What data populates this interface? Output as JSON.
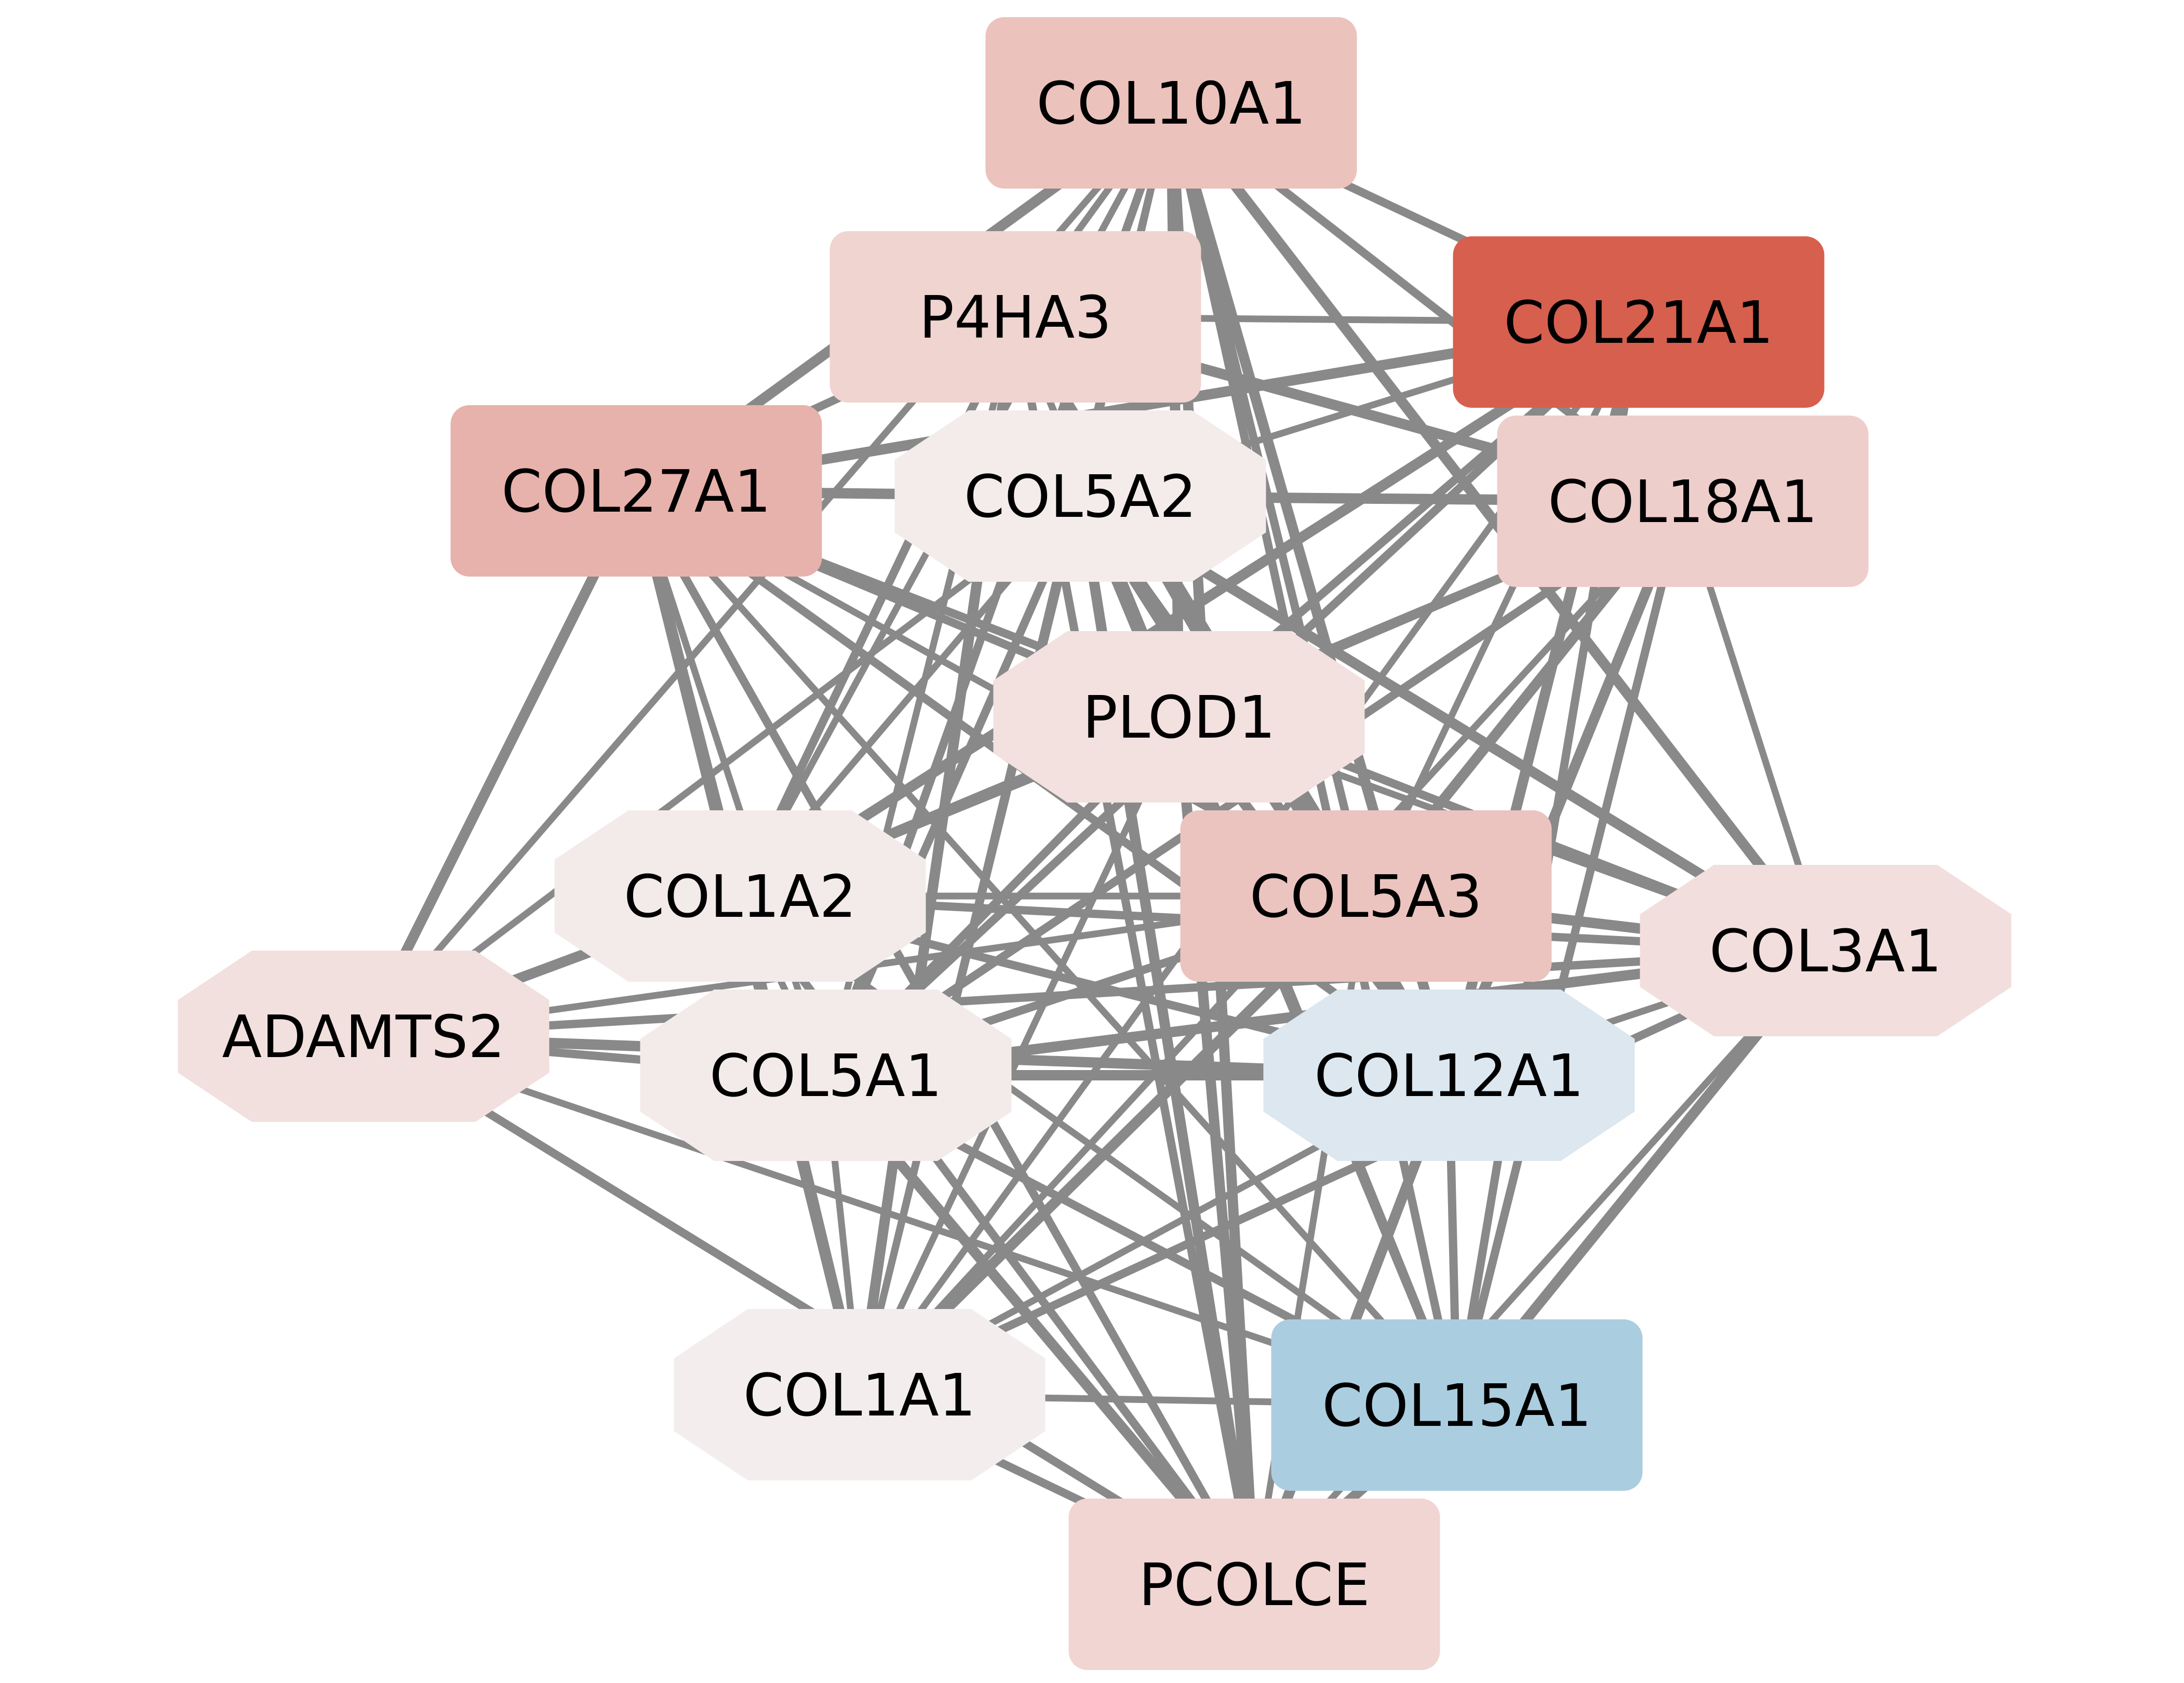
{
  "network": {
    "nodes": [
      {
        "id": "COL10A1",
        "label": "COL10A1",
        "shape": "rect",
        "color": "#ebc2bc"
      },
      {
        "id": "P4HA3",
        "label": "P4HA3",
        "shape": "rect",
        "color": "#efd4d0"
      },
      {
        "id": "COL21A1",
        "label": "COL21A1",
        "shape": "rect",
        "color": "#d75f4e"
      },
      {
        "id": "COL27A1",
        "label": "COL27A1",
        "shape": "rect",
        "color": "#e7b2ab"
      },
      {
        "id": "COL5A2",
        "label": "COL5A2",
        "shape": "octagon",
        "color": "#f4eceb"
      },
      {
        "id": "COL18A1",
        "label": "COL18A1",
        "shape": "rect",
        "color": "#eececa"
      },
      {
        "id": "PLOD1",
        "label": "PLOD1",
        "shape": "octagon",
        "color": "#f2e1df"
      },
      {
        "id": "COL1A2",
        "label": "COL1A2",
        "shape": "octagon",
        "color": "#f3ebea"
      },
      {
        "id": "COL5A3",
        "label": "COL5A3",
        "shape": "rect",
        "color": "#ebc4bf"
      },
      {
        "id": "COL3A1",
        "label": "COL3A1",
        "shape": "octagon",
        "color": "#f2dfdd"
      },
      {
        "id": "ADAMTS2",
        "label": "ADAMTS2",
        "shape": "octagon",
        "color": "#f2e0de"
      },
      {
        "id": "COL5A1",
        "label": "COL5A1",
        "shape": "octagon",
        "color": "#f3ebea"
      },
      {
        "id": "COL12A1",
        "label": "COL12A1",
        "shape": "octagon",
        "color": "#dce7ef"
      },
      {
        "id": "COL1A1",
        "label": "COL1A1",
        "shape": "octagon",
        "color": "#f3eeed"
      },
      {
        "id": "COL15A1",
        "label": "COL15A1",
        "shape": "rect",
        "color": "#abcde0"
      },
      {
        "id": "PCOLCE",
        "label": "PCOLCE",
        "shape": "rect",
        "color": "#f0d5d2"
      }
    ],
    "edges": [
      [
        "COL10A1",
        "P4HA3"
      ],
      [
        "COL10A1",
        "COL21A1"
      ],
      [
        "COL10A1",
        "COL27A1"
      ],
      [
        "COL10A1",
        "COL5A2"
      ],
      [
        "COL10A1",
        "COL18A1"
      ],
      [
        "COL10A1",
        "PLOD1"
      ],
      [
        "COL10A1",
        "COL1A2"
      ],
      [
        "COL10A1",
        "COL5A3"
      ],
      [
        "COL10A1",
        "COL3A1"
      ],
      [
        "COL10A1",
        "ADAMTS2"
      ],
      [
        "COL10A1",
        "COL5A1"
      ],
      [
        "COL10A1",
        "COL12A1"
      ],
      [
        "COL10A1",
        "COL1A1"
      ],
      [
        "COL10A1",
        "COL15A1"
      ],
      [
        "COL10A1",
        "PCOLCE"
      ],
      [
        "P4HA3",
        "COL21A1"
      ],
      [
        "P4HA3",
        "COL27A1"
      ],
      [
        "P4HA3",
        "COL18A1"
      ],
      [
        "P4HA3",
        "PLOD1"
      ],
      [
        "P4HA3",
        "COL1A2"
      ],
      [
        "P4HA3",
        "COL5A3"
      ],
      [
        "P4HA3",
        "COL5A1"
      ],
      [
        "P4HA3",
        "COL12A1"
      ],
      [
        "P4HA3",
        "COL1A1"
      ],
      [
        "P4HA3",
        "COL15A1"
      ],
      [
        "P4HA3",
        "PCOLCE"
      ],
      [
        "COL21A1",
        "COL27A1"
      ],
      [
        "COL21A1",
        "COL5A2"
      ],
      [
        "COL21A1",
        "PLOD1"
      ],
      [
        "COL21A1",
        "COL1A2"
      ],
      [
        "COL21A1",
        "COL5A3"
      ],
      [
        "COL21A1",
        "COL5A1"
      ],
      [
        "COL21A1",
        "COL12A1"
      ],
      [
        "COL21A1",
        "COL1A1"
      ],
      [
        "COL21A1",
        "COL15A1"
      ],
      [
        "COL27A1",
        "COL5A2"
      ],
      [
        "COL27A1",
        "COL18A1"
      ],
      [
        "COL27A1",
        "PLOD1"
      ],
      [
        "COL27A1",
        "COL1A2"
      ],
      [
        "COL27A1",
        "COL5A3"
      ],
      [
        "COL27A1",
        "COL3A1"
      ],
      [
        "COL27A1",
        "ADAMTS2"
      ],
      [
        "COL27A1",
        "COL5A1"
      ],
      [
        "COL27A1",
        "COL12A1"
      ],
      [
        "COL27A1",
        "COL1A1"
      ],
      [
        "COL27A1",
        "COL15A1"
      ],
      [
        "COL27A1",
        "PCOLCE"
      ],
      [
        "COL5A2",
        "COL18A1"
      ],
      [
        "COL5A2",
        "COL1A2"
      ],
      [
        "COL5A2",
        "COL5A3"
      ],
      [
        "COL5A2",
        "COL3A1"
      ],
      [
        "COL5A2",
        "ADAMTS2"
      ],
      [
        "COL5A2",
        "COL5A1"
      ],
      [
        "COL5A2",
        "COL12A1"
      ],
      [
        "COL5A2",
        "COL1A1"
      ],
      [
        "COL5A2",
        "COL15A1"
      ],
      [
        "COL5A2",
        "PCOLCE"
      ],
      [
        "COL18A1",
        "PLOD1"
      ],
      [
        "COL18A1",
        "COL1A2"
      ],
      [
        "COL18A1",
        "COL5A3"
      ],
      [
        "COL18A1",
        "COL3A1"
      ],
      [
        "COL18A1",
        "COL5A1"
      ],
      [
        "COL18A1",
        "COL12A1"
      ],
      [
        "COL18A1",
        "COL1A1"
      ],
      [
        "COL18A1",
        "COL15A1"
      ],
      [
        "PLOD1",
        "COL1A2"
      ],
      [
        "PLOD1",
        "COL3A1"
      ],
      [
        "PLOD1",
        "COL5A1"
      ],
      [
        "PLOD1",
        "COL12A1"
      ],
      [
        "PLOD1",
        "COL1A1"
      ],
      [
        "PLOD1",
        "COL15A1"
      ],
      [
        "PLOD1",
        "PCOLCE"
      ],
      [
        "COL1A2",
        "COL5A3"
      ],
      [
        "COL1A2",
        "COL3A1"
      ],
      [
        "COL1A2",
        "ADAMTS2"
      ],
      [
        "COL1A2",
        "COL5A1"
      ],
      [
        "COL1A2",
        "COL12A1"
      ],
      [
        "COL1A2",
        "COL1A1"
      ],
      [
        "COL1A2",
        "COL15A1"
      ],
      [
        "COL1A2",
        "PCOLCE"
      ],
      [
        "COL5A3",
        "COL3A1"
      ],
      [
        "COL5A3",
        "ADAMTS2"
      ],
      [
        "COL5A3",
        "COL5A1"
      ],
      [
        "COL5A3",
        "COL1A1"
      ],
      [
        "COL5A3",
        "PCOLCE"
      ],
      [
        "COL3A1",
        "ADAMTS2"
      ],
      [
        "COL3A1",
        "COL5A1"
      ],
      [
        "COL3A1",
        "COL12A1"
      ],
      [
        "COL3A1",
        "COL1A1"
      ],
      [
        "COL3A1",
        "COL15A1"
      ],
      [
        "COL3A1",
        "PCOLCE"
      ],
      [
        "ADAMTS2",
        "COL5A1"
      ],
      [
        "ADAMTS2",
        "COL12A1"
      ],
      [
        "ADAMTS2",
        "COL15A1"
      ],
      [
        "ADAMTS2",
        "PCOLCE"
      ],
      [
        "COL5A1",
        "COL12A1"
      ],
      [
        "COL5A1",
        "COL1A1"
      ],
      [
        "COL5A1",
        "COL15A1"
      ],
      [
        "COL5A1",
        "PCOLCE"
      ],
      [
        "COL12A1",
        "COL1A1"
      ],
      [
        "COL12A1",
        "COL15A1"
      ],
      [
        "COL12A1",
        "PCOLCE"
      ],
      [
        "COL1A1",
        "COL15A1"
      ],
      [
        "COL1A1",
        "PCOLCE"
      ],
      [
        "COL15A1",
        "PCOLCE"
      ]
    ]
  }
}
